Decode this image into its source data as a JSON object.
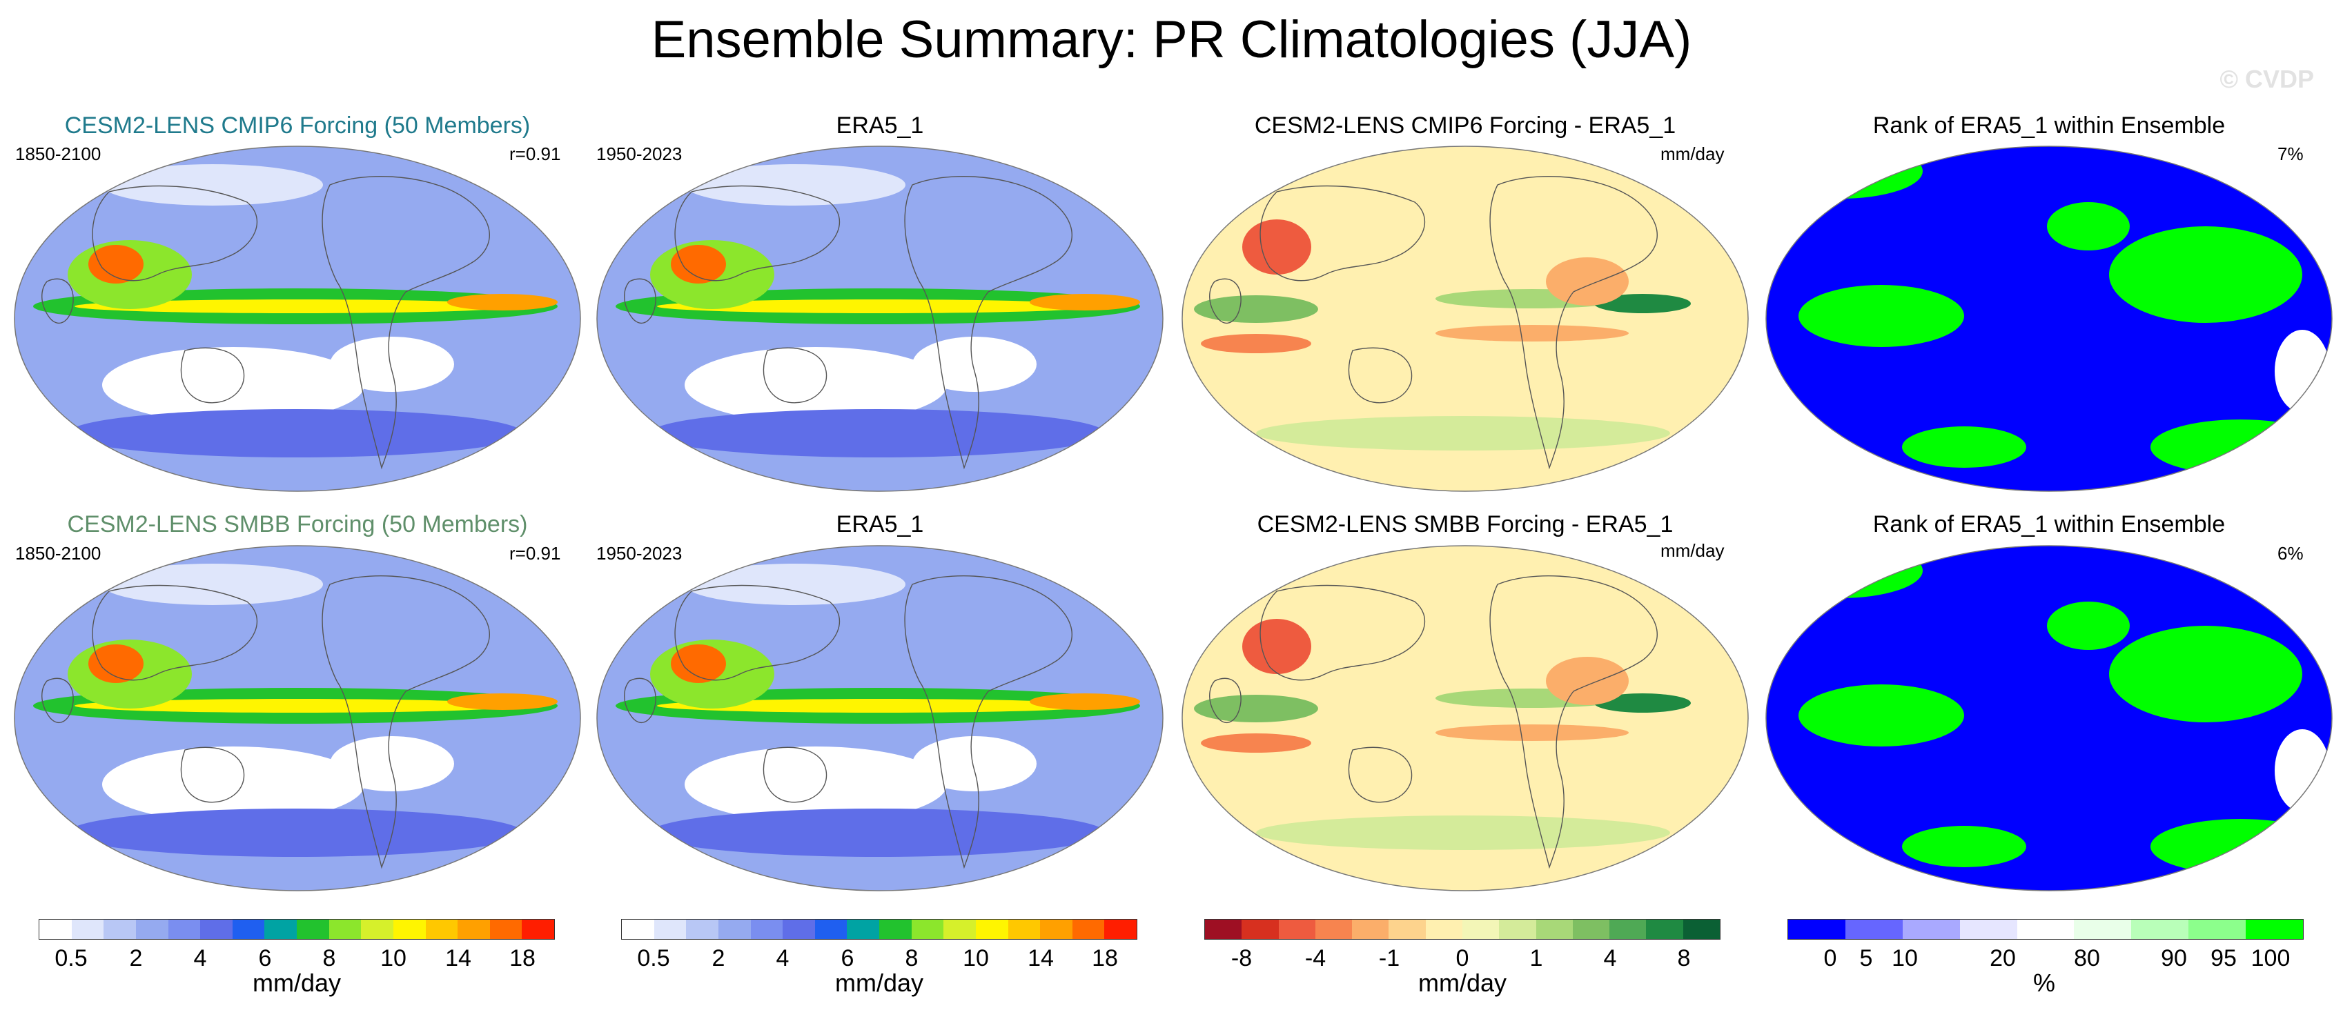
{
  "header": {
    "title": "Ensemble Summary: PR Climatologies (JJA)",
    "watermark": "© CVDP"
  },
  "colors": {
    "cmip6_title": "#1f7a8c",
    "smbb_title": "#5f8f6a",
    "precip_scale": [
      "#ffffff",
      "#dfe6fb",
      "#b8c7f5",
      "#95aaf0",
      "#7a8ef0",
      "#5f6ee8",
      "#1f5ff0",
      "#00a3a3",
      "#22c22e",
      "#8ce62c",
      "#d6f02b",
      "#fff500",
      "#ffc800",
      "#ffa000",
      "#ff6a00",
      "#ff1e00"
    ],
    "diff_scale": [
      "#9e0f23",
      "#d7301f",
      "#ee5b3f",
      "#f7844f",
      "#fbae6a",
      "#fdd38d",
      "#fff0b0",
      "#f3f6b7",
      "#d4eb9a",
      "#a8d878",
      "#7ebf62",
      "#4fa955",
      "#1f8a42",
      "#0b6034"
    ],
    "rank_scale": [
      "#0000ff",
      "#6666ff",
      "#a9a9ff",
      "#e6e6ff",
      "#ffffff",
      "#e9ffe9",
      "#b9ffb9",
      "#8cff8c",
      "#00ff00"
    ]
  },
  "panels": {
    "cesm_cmip6": {
      "title": "CESM2-LENS CMIP6 Forcing (50 Members)",
      "years": "1850-2100",
      "stat": "r=0.91"
    },
    "era5_row1": {
      "title": "ERA5_1",
      "years": "1950-2023"
    },
    "diff_cmip6": {
      "title": "CESM2-LENS CMIP6 Forcing - ERA5_1",
      "units": "mm/day"
    },
    "rank_row1": {
      "title": "Rank of ERA5_1 within Ensemble",
      "stat": "7%"
    },
    "cesm_smbb": {
      "title": "CESM2-LENS SMBB Forcing (50 Members)",
      "years": "1850-2100",
      "stat": "r=0.91"
    },
    "era5_row2": {
      "title": "ERA5_1",
      "years": "1950-2023"
    },
    "diff_smbb": {
      "title": "CESM2-LENS SMBB Forcing - ERA5_1",
      "units": "mm/day"
    },
    "rank_row2": {
      "title": "Rank of ERA5_1 within Ensemble",
      "stat": "6%"
    }
  },
  "legends": {
    "precip1": {
      "ticks": [
        "0.5",
        "2",
        "4",
        "6",
        "8",
        "10",
        "14",
        "18"
      ],
      "unit": "mm/day"
    },
    "precip2": {
      "ticks": [
        "0.5",
        "2",
        "4",
        "6",
        "8",
        "10",
        "14",
        "18"
      ],
      "unit": "mm/day"
    },
    "diff": {
      "ticks": [
        "-8",
        "-4",
        "-1",
        "0",
        "1",
        "4",
        "8"
      ],
      "unit": "mm/day"
    },
    "rank": {
      "ticks": [
        "0",
        "5",
        "10",
        "20",
        "80",
        "90",
        "95",
        "100"
      ],
      "unit": "%"
    }
  },
  "chart_data": {
    "type": "heatmap",
    "title": "Ensemble Summary: PR Climatologies (JJA)",
    "season": "JJA",
    "variable": "PR",
    "rows": [
      {
        "ensemble": "CESM2-LENS CMIP6 Forcing (50 Members)",
        "ensemble_period": "1850-2100",
        "pattern_correlation": 0.91,
        "reference": "ERA5_1",
        "reference_period": "1950-2023",
        "rank_percent": 7
      },
      {
        "ensemble": "CESM2-LENS SMBB Forcing (50 Members)",
        "ensemble_period": "1850-2100",
        "pattern_correlation": 0.91,
        "reference": "ERA5_1",
        "reference_period": "1950-2023",
        "rank_percent": 6
      }
    ],
    "colorbars": {
      "climatology": {
        "levels": [
          0.5,
          1,
          2,
          3,
          4,
          5,
          6,
          7,
          8,
          9,
          10,
          12,
          14,
          16,
          18
        ],
        "unit": "mm/day"
      },
      "difference": {
        "levels": [
          -8,
          -6,
          -4,
          -2,
          -1,
          -0.5,
          0,
          0.5,
          1,
          2,
          4,
          6,
          8
        ],
        "unit": "mm/day"
      },
      "rank": {
        "levels": [
          0,
          5,
          10,
          20,
          80,
          90,
          95,
          100
        ],
        "unit": "%"
      }
    }
  }
}
